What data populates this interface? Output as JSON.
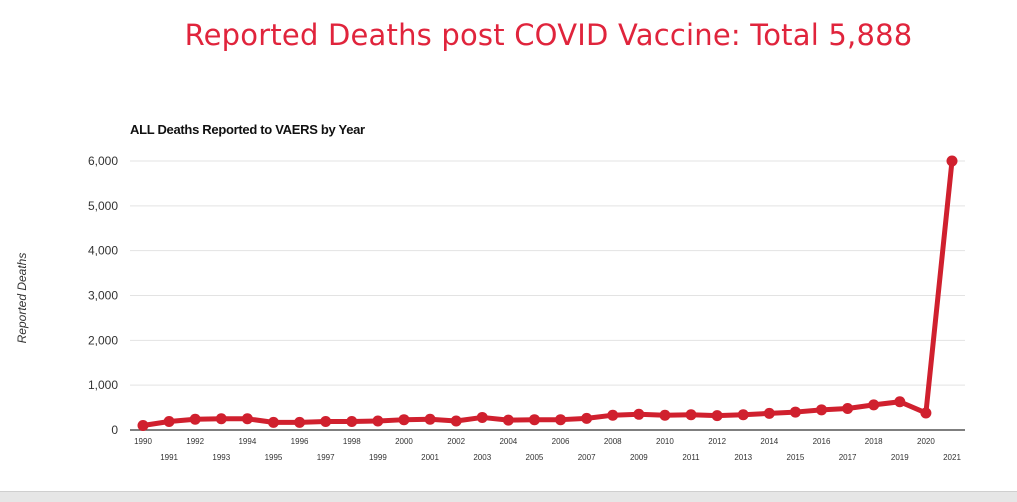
{
  "headline": "Reported Deaths post COVID Vaccine: Total 5,888",
  "chart_data": {
    "type": "line",
    "title": "ALL Deaths Reported to VAERS by Year",
    "xlabel": "",
    "ylabel": "Reported Deaths",
    "ylim": [
      0,
      6000
    ],
    "y_ticks": [
      "0",
      "1,000",
      "2,000",
      "3,000",
      "4,000",
      "5,000",
      "6,000"
    ],
    "y_tick_values": [
      0,
      1000,
      2000,
      3000,
      4000,
      5000,
      6000
    ],
    "categories": [
      "1990",
      "1991",
      "1992",
      "1993",
      "1994",
      "1995",
      "1996",
      "1997",
      "1998",
      "1999",
      "2000",
      "2001",
      "2002",
      "2003",
      "2004",
      "2005",
      "2006",
      "2007",
      "2008",
      "2009",
      "2010",
      "2011",
      "2012",
      "2013",
      "2014",
      "2015",
      "2016",
      "2017",
      "2018",
      "2019",
      "2020",
      "2021"
    ],
    "series": [
      {
        "name": "Reported Deaths",
        "color": "#d0202e",
        "values": [
          100,
          190,
          240,
          250,
          250,
          170,
          170,
          190,
          190,
          200,
          230,
          240,
          200,
          280,
          220,
          230,
          230,
          260,
          330,
          350,
          330,
          340,
          320,
          340,
          370,
          400,
          450,
          480,
          560,
          630,
          380,
          6000
        ]
      }
    ],
    "grid": true
  }
}
